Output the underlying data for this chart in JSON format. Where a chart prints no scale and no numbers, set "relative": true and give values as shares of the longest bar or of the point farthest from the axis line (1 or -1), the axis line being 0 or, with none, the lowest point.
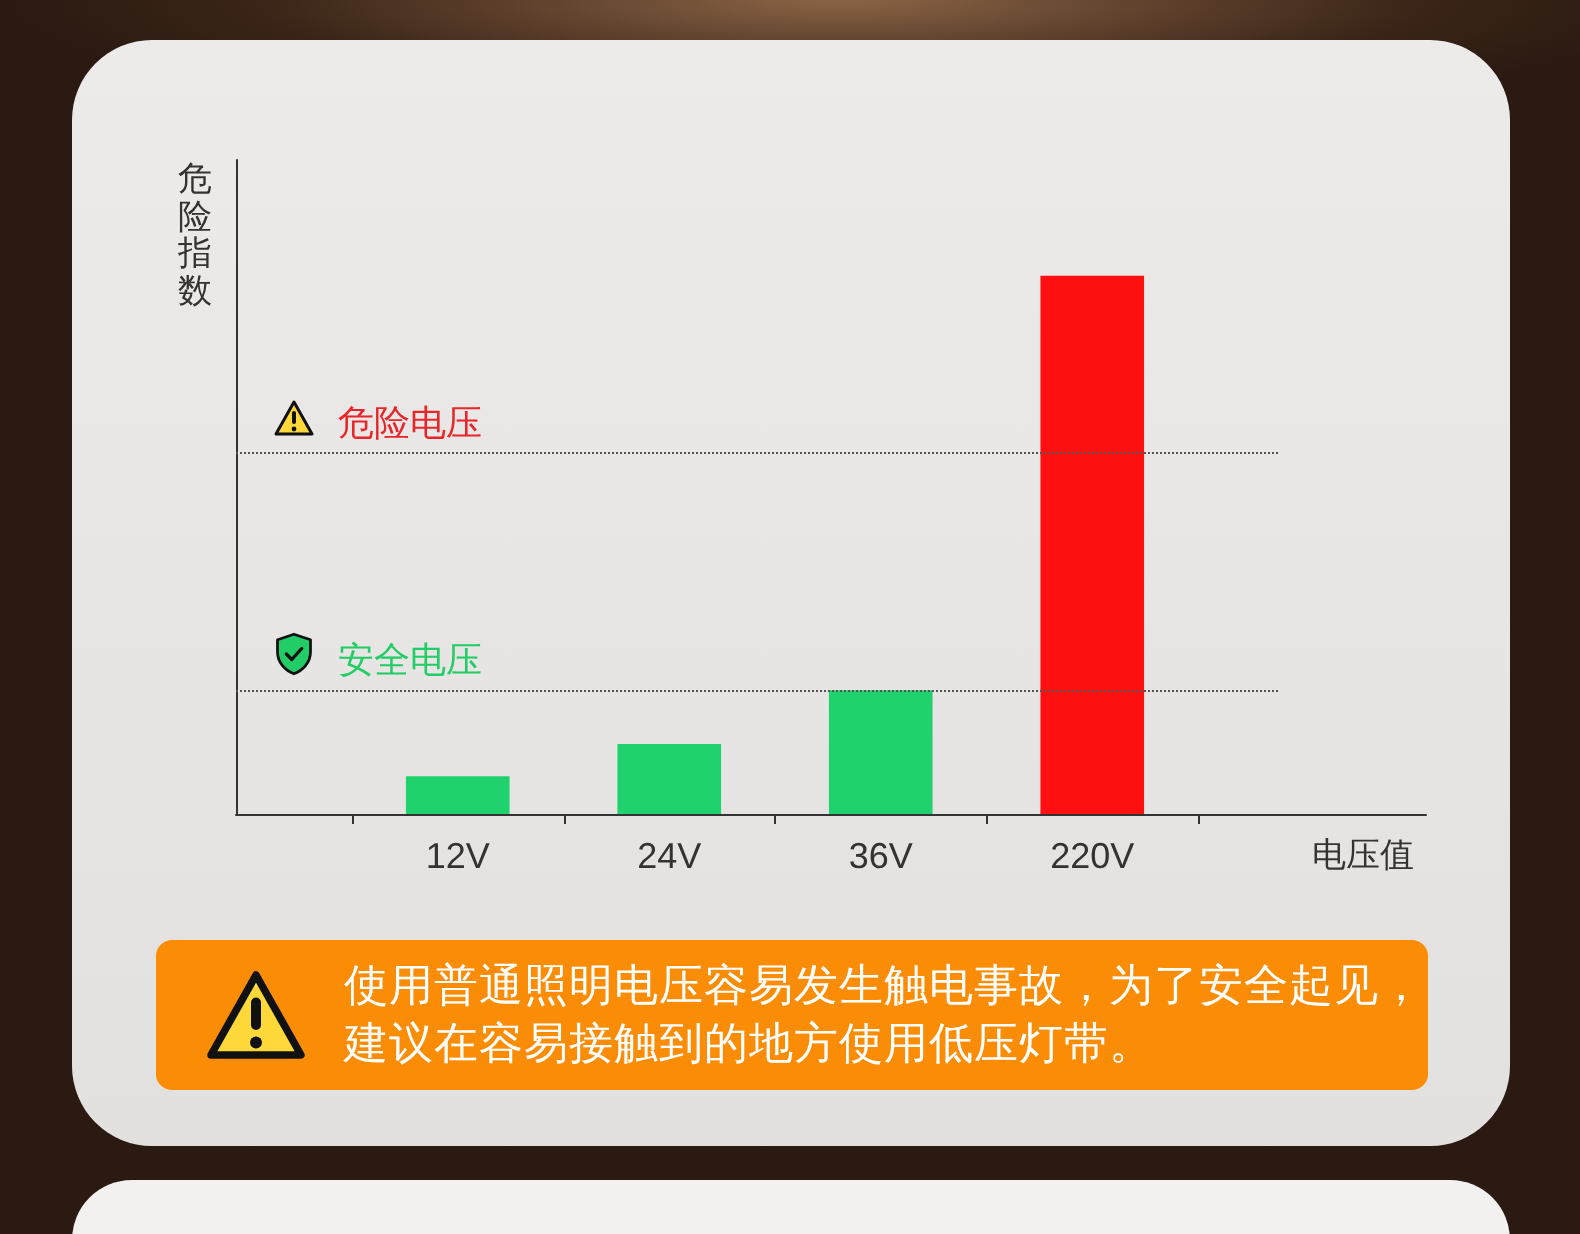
{
  "chart_data": {
    "type": "bar",
    "categories": [
      "12V",
      "24V",
      "36V",
      "220V"
    ],
    "values": [
      0.07,
      0.13,
      0.23,
      1
    ],
    "colors": [
      "#1fd26e",
      "#1fd26e",
      "#1fd26e",
      "#ff1010"
    ],
    "relative": true,
    "xlabel": "电压值",
    "ylabel": "危险指数",
    "ref_lines": [
      {
        "axis": "y",
        "value": 0.67,
        "label": "危险电压",
        "color": "#555555",
        "line_style": "dotted"
      },
      {
        "axis": "y",
        "value": 0.23,
        "label": "安全电压",
        "color": "#555555",
        "line_style": "dotted"
      }
    ],
    "annotations": [
      "使用普通照明电压容易发生触电事故，为了安全起见，建议在容易接触到的地方使用低压灯带。"
    ]
  }
}
